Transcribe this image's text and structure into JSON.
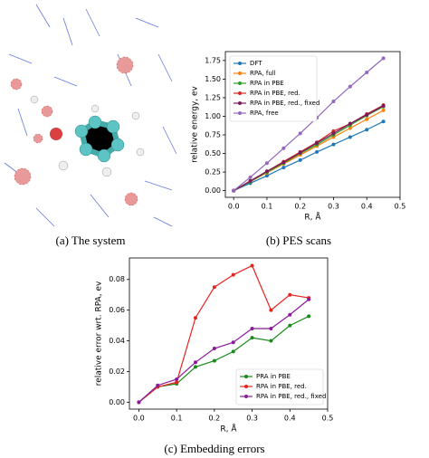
{
  "chart_data": [
    {
      "type": "line",
      "caption": "(b) PES scans",
      "x_label": "R, Å",
      "y_label": "relative energy, ev",
      "x": [
        0,
        0.05,
        0.1,
        0.15,
        0.2,
        0.25,
        0.3,
        0.35,
        0.4,
        0.45
      ],
      "series": [
        {
          "name": "DFT",
          "color": "#1f77b4",
          "values": [
            0,
            0.1,
            0.2,
            0.31,
            0.41,
            0.52,
            0.62,
            0.72,
            0.82,
            0.93
          ]
        },
        {
          "name": "RPA, full",
          "color": "#ff7f0e",
          "values": [
            0,
            0.12,
            0.24,
            0.36,
            0.48,
            0.6,
            0.72,
            0.84,
            0.96,
            1.08
          ]
        },
        {
          "name": "RPA in PBE",
          "color": "#2ca02c",
          "values": [
            0,
            0.12,
            0.25,
            0.37,
            0.5,
            0.62,
            0.75,
            0.88,
            1.01,
            1.13
          ]
        },
        {
          "name": "RPA in PBE, red.",
          "color": "#d62728",
          "values": [
            0,
            0.13,
            0.26,
            0.39,
            0.52,
            0.65,
            0.8,
            0.9,
            1.03,
            1.15
          ]
        },
        {
          "name": "RPA in PBE, red., fixed",
          "color": "#7a1a5e",
          "values": [
            0,
            0.13,
            0.26,
            0.38,
            0.51,
            0.64,
            0.77,
            0.9,
            1.02,
            1.14
          ]
        },
        {
          "name": "RPA, free",
          "color": "#9467bd",
          "values": [
            0,
            0.18,
            0.37,
            0.57,
            0.77,
            0.98,
            1.2,
            1.4,
            1.59,
            1.78
          ]
        }
      ],
      "xlim": [
        -0.025,
        0.5
      ],
      "ylim": [
        -0.09,
        1.87
      ],
      "xticks": [
        {
          "value": 0,
          "label": "0.0"
        },
        0.1,
        0.2,
        0.3,
        0.4,
        0.5
      ],
      "yticks": [
        {
          "value": 0,
          "label": "0.00"
        },
        0.25,
        {
          "value": 0.5,
          "label": "0.50"
        },
        0.75,
        {
          "value": 1,
          "label": "1.00"
        },
        1.25,
        {
          "value": 1.5,
          "label": "1.50"
        },
        1.75
      ],
      "legend": "upper left"
    },
    {
      "type": "line",
      "caption": "(c) Embedding errors",
      "x_label": "R, Å",
      "y_label": "relative error wrt. RPA, ev",
      "x": [
        0,
        0.05,
        0.1,
        0.15,
        0.2,
        0.25,
        0.3,
        0.35,
        0.4,
        0.45
      ],
      "series": [
        {
          "name": "PRA in PBE",
          "color": "#1a8a1a",
          "values": [
            0,
            0.01,
            0.012,
            0.023,
            0.027,
            0.033,
            0.042,
            0.04,
            0.05,
            0.056
          ]
        },
        {
          "name": "RPA in PBE, red.",
          "color": "#e8241f",
          "values": [
            0,
            0.01,
            0.013,
            0.055,
            0.075,
            0.083,
            0.089,
            0.06,
            0.07,
            0.068
          ]
        },
        {
          "name": "RPA in PBE, red., fixed",
          "color": "#8a1a9a",
          "values": [
            0,
            0.011,
            0.015,
            0.026,
            0.035,
            0.039,
            0.048,
            0.048,
            0.057,
            0.067
          ]
        }
      ],
      "xlim": [
        -0.025,
        0.5
      ],
      "ylim": [
        -0.0045,
        0.094
      ],
      "xticks": [
        {
          "value": 0,
          "label": "0.0"
        },
        0.1,
        0.2,
        0.3,
        0.4,
        0.5
      ],
      "yticks": [
        {
          "value": 0,
          "label": "0.00"
        },
        0.02,
        0.04,
        0.06,
        0.08
      ],
      "legend": "lower right"
    }
  ],
  "figure_a": {
    "caption": "(a) The system"
  }
}
